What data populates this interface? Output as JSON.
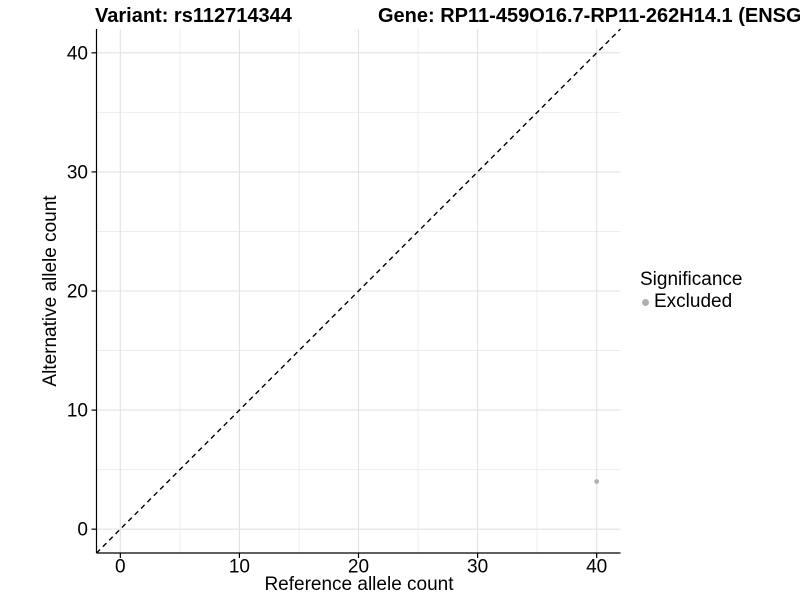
{
  "chart_data": {
    "type": "scatter",
    "title_left": "Variant: rs112714344",
    "title_right": "Gene: RP11-459O16.7-RP11-262H14.1 (ENSG",
    "xlabel": "Reference allele count",
    "ylabel": "Alternative allele count",
    "xlim": [
      -2,
      42
    ],
    "ylim": [
      -2,
      42
    ],
    "x_ticks": [
      0,
      10,
      20,
      30,
      40
    ],
    "y_ticks": [
      0,
      10,
      20,
      30,
      40
    ],
    "grid": true,
    "grid_minor_step": 5,
    "series": [
      {
        "name": "Excluded",
        "marker": "circle",
        "color": "#b0b0b0",
        "points": [
          {
            "x": 40,
            "y": 4
          }
        ]
      }
    ],
    "identity_line": {
      "slope": 1,
      "intercept": 0,
      "style": "dashed",
      "color": "#000000"
    },
    "legend": {
      "title": "Significance",
      "position": "right",
      "entries": [
        {
          "label": "Excluded",
          "color": "#b0b0b0",
          "marker": "circle"
        }
      ]
    },
    "colors": {
      "background": "#ffffff",
      "grid_major": "#e2e2e2",
      "grid_minor": "#ededed",
      "axis_line": "#000000",
      "tick_label": "#000000",
      "text": "#000000"
    }
  }
}
